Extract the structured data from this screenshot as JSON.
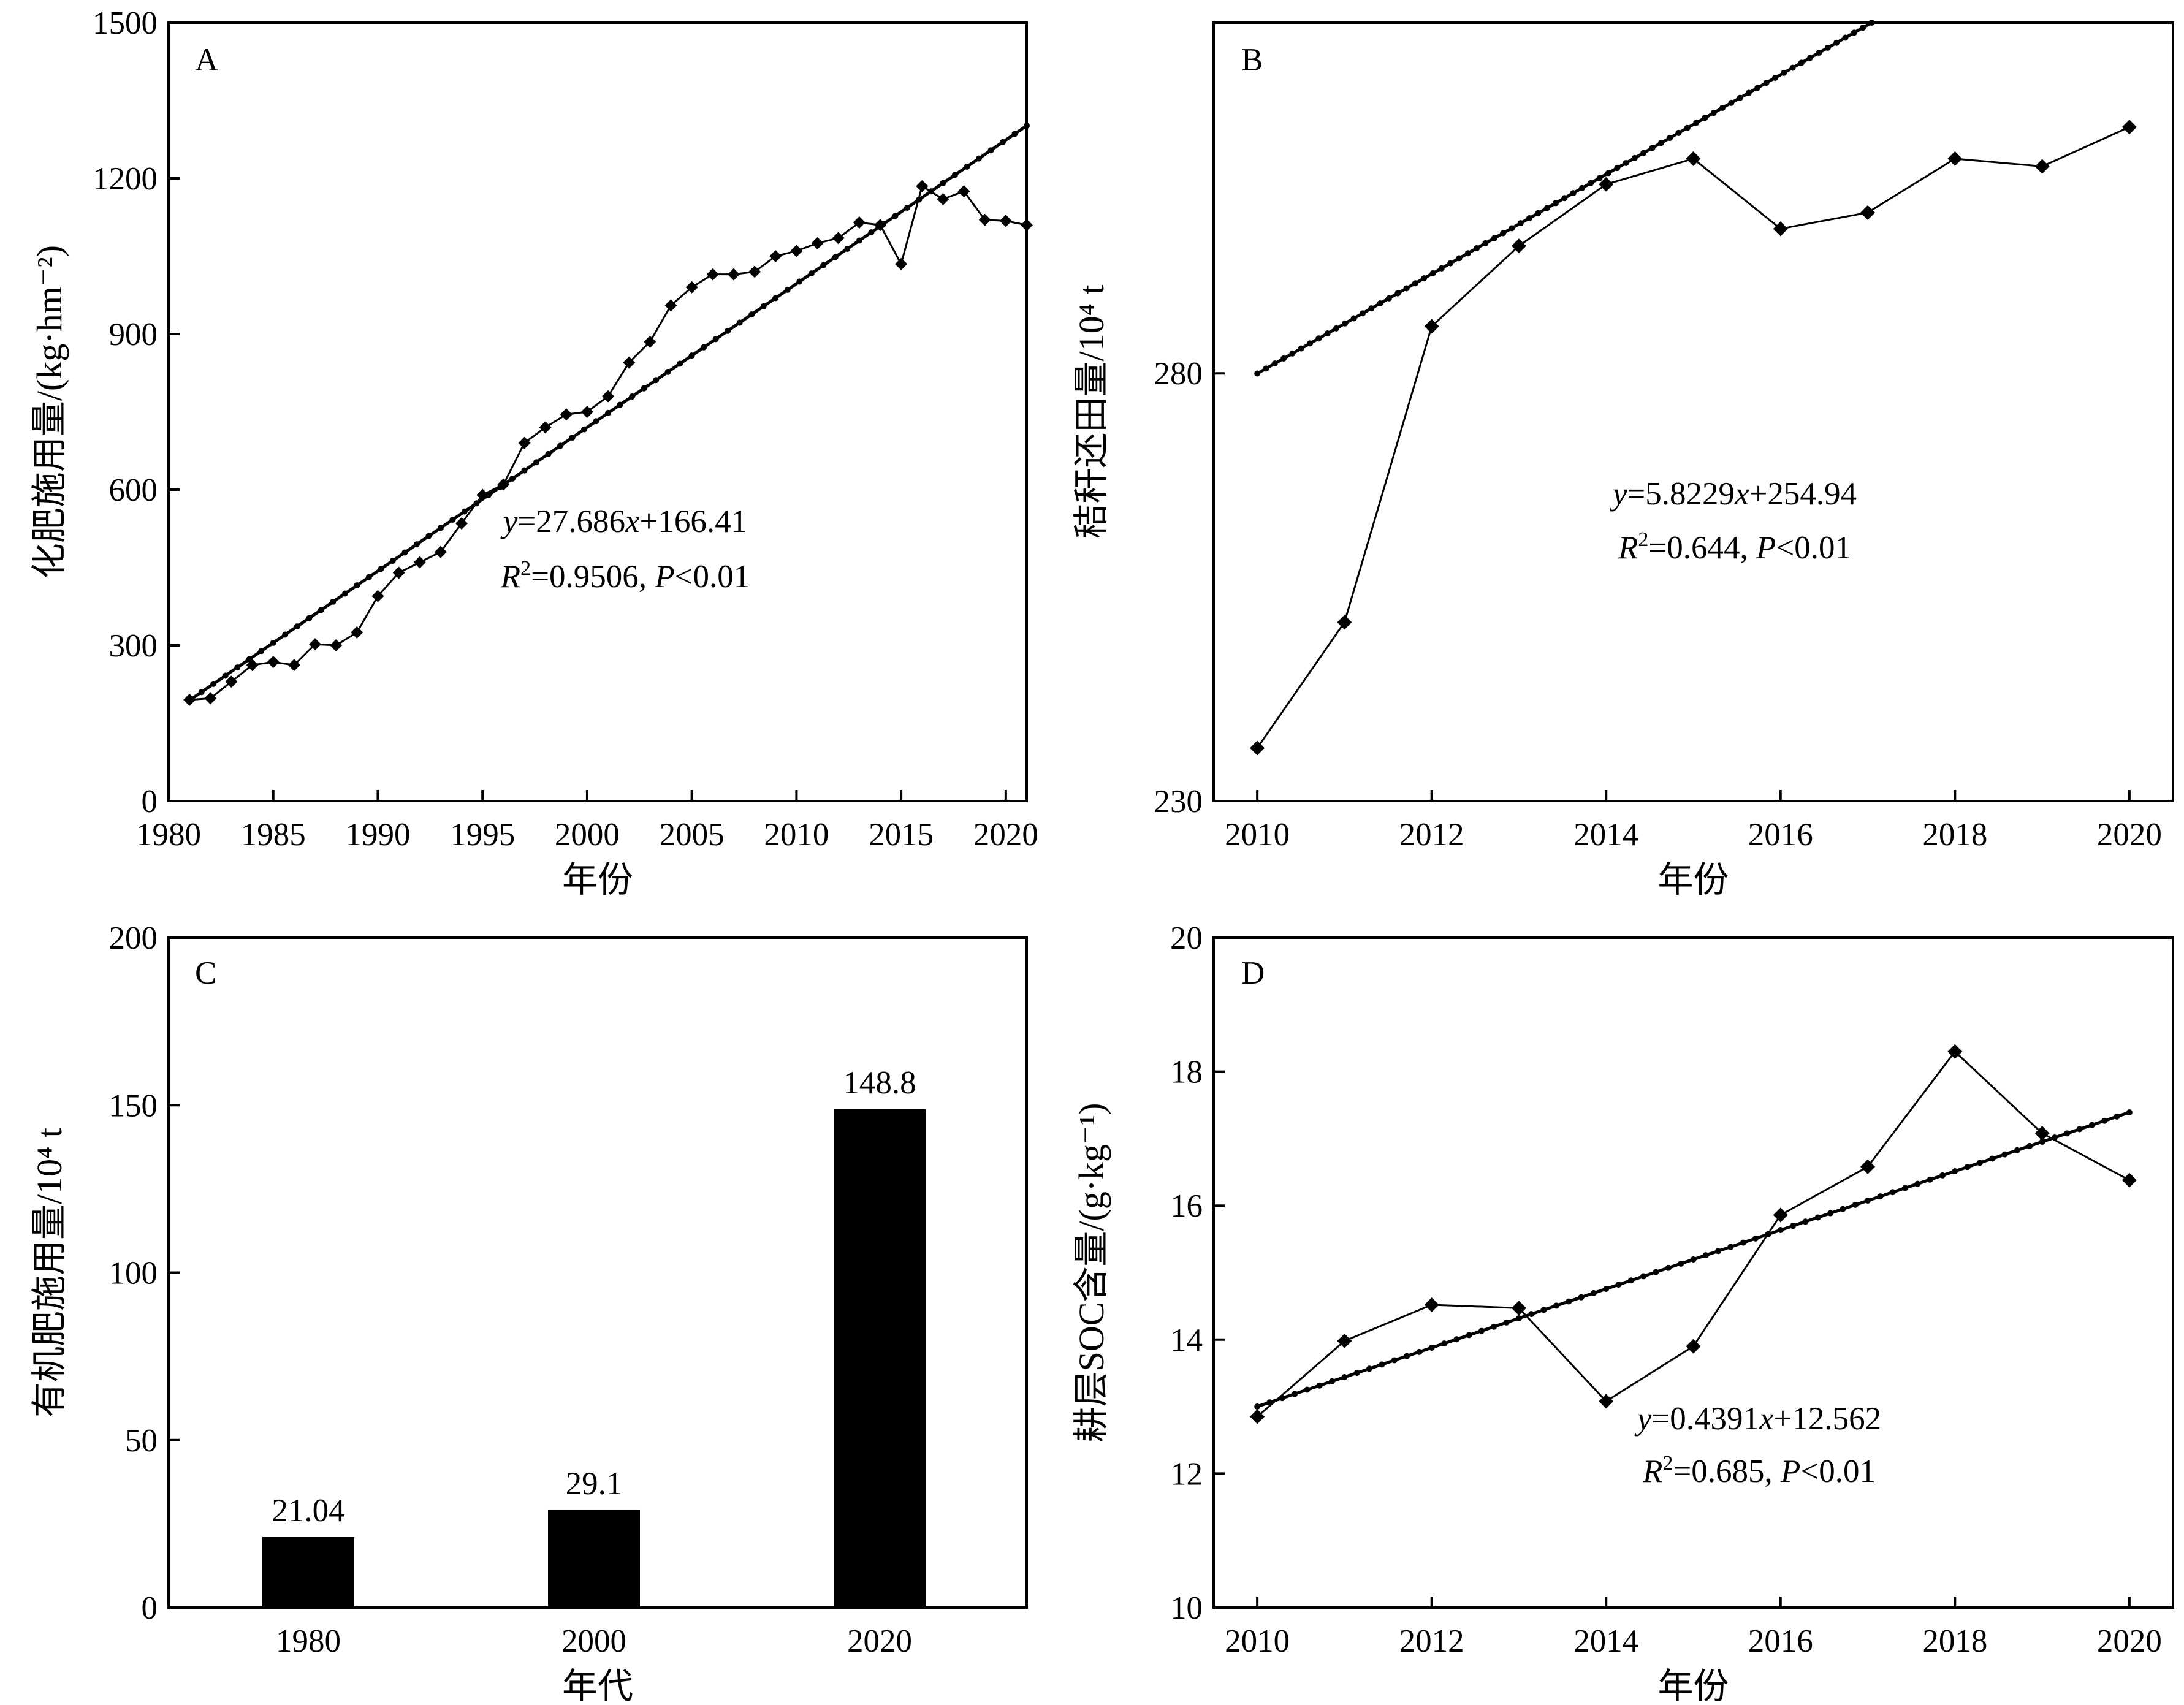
{
  "colors": {
    "ink": "#000000",
    "background": "#ffffff"
  },
  "chart_data": [
    {
      "panel": "A",
      "type": "line",
      "xlabel": "年份",
      "ylabel": "化肥施用量/(kg·hm⁻²)",
      "xlim": [
        1980,
        2021
      ],
      "ylim": [
        0,
        1500
      ],
      "xticks": [
        1980,
        1985,
        1990,
        1995,
        2000,
        2005,
        2010,
        2015,
        2020
      ],
      "yticks": [
        0,
        300,
        600,
        900,
        1200,
        1500
      ],
      "marker": "diamond",
      "x": [
        1981,
        1982,
        1983,
        1984,
        1985,
        1986,
        1987,
        1988,
        1989,
        1990,
        1991,
        1992,
        1993,
        1994,
        1995,
        1996,
        1997,
        1998,
        1999,
        2000,
        2001,
        2002,
        2003,
        2004,
        2005,
        2006,
        2007,
        2008,
        2009,
        2010,
        2011,
        2012,
        2013,
        2014,
        2015,
        2016,
        2017,
        2018,
        2019,
        2020,
        2021
      ],
      "values": [
        195,
        198,
        230,
        262,
        268,
        262,
        302,
        300,
        325,
        395,
        440,
        460,
        480,
        535,
        590,
        610,
        690,
        720,
        745,
        750,
        780,
        845,
        885,
        955,
        990,
        1015,
        1015,
        1020,
        1050,
        1060,
        1075,
        1085,
        1115,
        1110,
        1035,
        1185,
        1160,
        1175,
        1120,
        1118,
        1110
      ],
      "trend": {
        "slope": 27.686,
        "intercept": 166.41,
        "x_origin": 1980
      },
      "equation": {
        "y_text": "y",
        "eq_text": "=27.686",
        "x_text": "x",
        "tail_text": "+166.41"
      },
      "stats": {
        "r_text": "R",
        "sup_text": "2",
        "eq_text": "=0.9506, ",
        "p_text": "P",
        "tail_text": "<0.01"
      }
    },
    {
      "panel": "B",
      "type": "line",
      "xlabel": "年份",
      "ylabel": "秸秆还田量/10⁴ t",
      "xlim": [
        2009.5,
        2020.5
      ],
      "ylim": [
        230,
        321
      ],
      "xticks": [
        2010,
        2012,
        2014,
        2016,
        2018,
        2020
      ],
      "yticks": [
        230,
        280
      ],
      "marker": "diamond",
      "x": [
        2010,
        2011,
        2012,
        2013,
        2014,
        2015,
        2016,
        2017,
        2018,
        2019,
        2020
      ],
      "values": [
        236.2,
        250.9,
        285.5,
        294.9,
        302.1,
        305.1,
        296.9,
        298.8,
        305.1,
        304.2,
        308.8
      ],
      "trend": {
        "slope": 5.8229,
        "intercept": 254.94,
        "x_origin": 2005.7
      },
      "equation": {
        "y_text": "y",
        "eq_text": "=5.8229",
        "x_text": "x",
        "tail_text": "+254.94"
      },
      "stats": {
        "r_text": "R",
        "sup_text": "2",
        "eq_text": "=0.644, ",
        "p_text": "P",
        "tail_text": "<0.01"
      }
    },
    {
      "panel": "C",
      "type": "bar",
      "xlabel": "年代",
      "ylabel": "有机肥施用量/10⁴ t",
      "ylim": [
        0,
        200
      ],
      "yticks": [
        0,
        50,
        100,
        150,
        200
      ],
      "categories": [
        "1980",
        "2000",
        "2020"
      ],
      "values": [
        21.04,
        29.1,
        148.8
      ],
      "value_labels": [
        "21.04",
        "29.1",
        "148.8"
      ]
    },
    {
      "panel": "D",
      "type": "line",
      "xlabel": "年份",
      "ylabel": "耕层SOC含量/(g·kg⁻¹)",
      "xlim": [
        2009.5,
        2020.5
      ],
      "ylim": [
        10,
        20
      ],
      "xticks": [
        2010,
        2012,
        2014,
        2016,
        2018,
        2020
      ],
      "yticks": [
        10,
        12,
        14,
        16,
        18,
        20
      ],
      "marker": "diamond",
      "x": [
        2010,
        2011,
        2012,
        2013,
        2014,
        2015,
        2016,
        2017,
        2018,
        2019,
        2020
      ],
      "values": [
        12.85,
        13.98,
        14.52,
        14.47,
        13.08,
        13.9,
        15.86,
        16.58,
        18.3,
        17.08,
        16.38
      ],
      "trend": {
        "slope": 0.4391,
        "intercept": 12.562,
        "x_origin": 2009
      },
      "equation": {
        "y_text": "y",
        "eq_text": "=0.4391",
        "x_text": "x",
        "tail_text": "+12.562"
      },
      "stats": {
        "r_text": "R",
        "sup_text": "2",
        "eq_text": "=0.685, ",
        "p_text": "P",
        "tail_text": "<0.01"
      }
    }
  ]
}
